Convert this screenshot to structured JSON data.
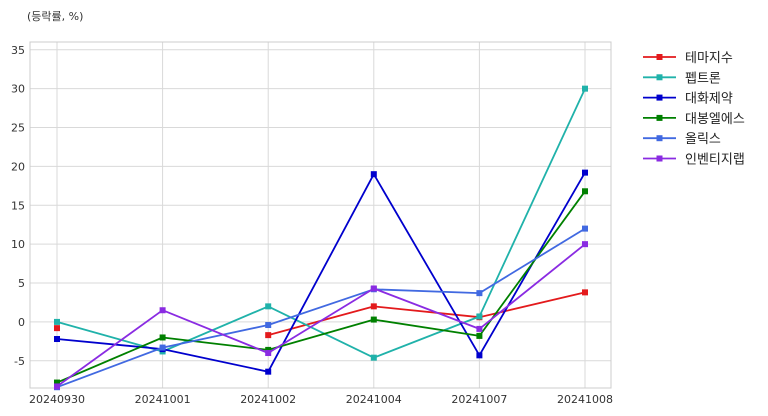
{
  "chart_data": {
    "type": "line",
    "unit_label": "(등락률, %)",
    "x": [
      "20240930",
      "20241001",
      "20241002",
      "20241004",
      "20241007",
      "20241008"
    ],
    "ylim": [
      -8.5,
      36
    ],
    "yticks": [
      -5,
      0,
      5,
      10,
      15,
      20,
      25,
      30,
      35
    ],
    "grid": true,
    "legend_position": "right",
    "series": [
      {
        "name": "테마지수",
        "color": "#e31a1c",
        "values": [
          -0.8,
          null,
          -1.7,
          2.0,
          0.6,
          3.8
        ]
      },
      {
        "name": "펩트론",
        "color": "#20b2aa",
        "values": [
          0.0,
          -3.8,
          2.0,
          -4.6,
          0.7,
          30.0
        ]
      },
      {
        "name": "대화제약",
        "color": "#0000cd",
        "values": [
          -2.2,
          -3.5,
          -6.4,
          19.0,
          -4.3,
          19.2
        ]
      },
      {
        "name": "대봉엘에스",
        "color": "#008000",
        "values": [
          -7.8,
          -2.0,
          -3.6,
          0.3,
          -1.8,
          16.8
        ]
      },
      {
        "name": "올릭스",
        "color": "#4169e1",
        "values": [
          -8.4,
          -3.3,
          -0.4,
          4.2,
          3.7,
          12.0
        ]
      },
      {
        "name": "인벤티지랩",
        "color": "#8a2be2",
        "values": [
          -8.3,
          1.5,
          -4.0,
          4.3,
          -0.9,
          10.0
        ]
      }
    ]
  }
}
